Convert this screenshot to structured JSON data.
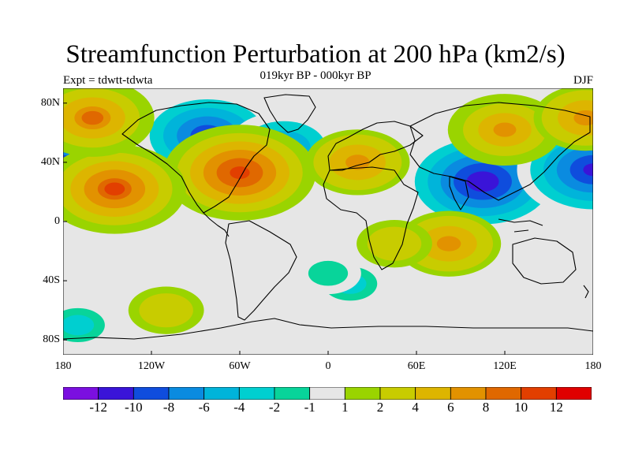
{
  "title": "Streamfunction Perturbation at 200 hPa (km2/s)",
  "subtitle": "019kyr BP - 000kyr BP",
  "left_label": "Expt = tdwtt-tdwta",
  "right_label": "DJF",
  "y_axis": {
    "tick_labels": [
      "80N",
      "40N",
      "0",
      "40S",
      "80S"
    ]
  },
  "x_axis": {
    "tick_labels": [
      "180",
      "120W",
      "60W",
      "0",
      "60E",
      "120E",
      "180"
    ]
  },
  "colors": {
    "bins": [
      "#7b0fe0",
      "#3a14d8",
      "#0f4ddd",
      "#0a8be0",
      "#00b4da",
      "#00cfd0",
      "#08d49a",
      "#e6e6e6",
      "#9ad400",
      "#c8cc00",
      "#ddb500",
      "#e29200",
      "#e06800",
      "#e23f00",
      "#e00000"
    ],
    "continent_outline": "#000000"
  },
  "colorbar": {
    "tick_labels": [
      "-12",
      "-10",
      "-8",
      "-6",
      "-4",
      "-2",
      "-1",
      "1",
      "2",
      "4",
      "6",
      "8",
      "10",
      "12"
    ]
  },
  "map_data": {
    "field": "200 hPa streamfunction perturbation",
    "units": "km2/s",
    "season": "DJF",
    "lon_range": [
      -180,
      180
    ],
    "lat_range": [
      -90,
      90
    ],
    "features": [
      {
        "lon": -82,
        "lat": 58,
        "value": -10
      },
      {
        "lon": -30,
        "lat": 50,
        "value": -7
      },
      {
        "lon": 105,
        "lat": 27,
        "value": -12
      },
      {
        "lon": 180,
        "lat": 35,
        "value": -11
      },
      {
        "lon": -180,
        "lat": 35,
        "value": -11
      },
      {
        "lon": -60,
        "lat": 33,
        "value": 11
      },
      {
        "lon": -145,
        "lat": 22,
        "value": 10
      },
      {
        "lon": -160,
        "lat": 70,
        "value": 8
      },
      {
        "lon": 120,
        "lat": 62,
        "value": 7
      },
      {
        "lon": 20,
        "lat": 40,
        "value": 6
      },
      {
        "lon": 175,
        "lat": 70,
        "value": 6
      },
      {
        "lon": 82,
        "lat": -15,
        "value": 6
      },
      {
        "lon": 15,
        "lat": -42,
        "value": -3
      },
      {
        "lon": 45,
        "lat": -15,
        "value": 3
      },
      {
        "lon": 0,
        "lat": -35,
        "value": -2
      },
      {
        "lon": -110,
        "lat": -60,
        "value": 3
      },
      {
        "lon": -170,
        "lat": -70,
        "value": -3
      }
    ]
  }
}
